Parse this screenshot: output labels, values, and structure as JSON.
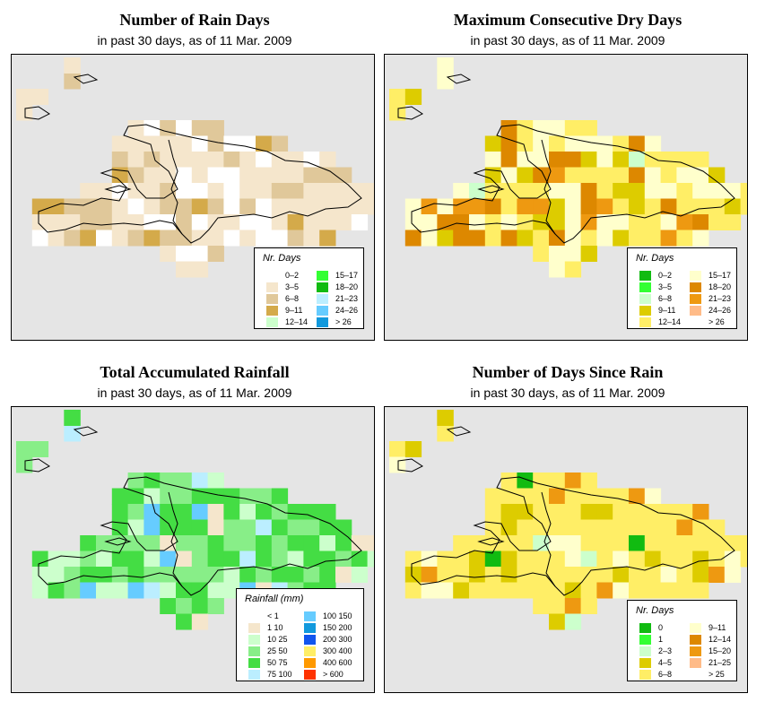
{
  "panels": [
    {
      "id": "rain-days",
      "title": "Number of Rain Days",
      "subtitle": "in past 30 days, as of  11 Mar. 2009",
      "legend": {
        "title": "Nr. Days",
        "items": [
          {
            "label": "0–2",
            "color": "#ffffff"
          },
          {
            "label": "3–5",
            "color": "#f5e6cc"
          },
          {
            "label": "6–8",
            "color": "#e0c89a"
          },
          {
            "label": "9–11",
            "color": "#d4aa4a"
          },
          {
            "label": "12–14",
            "color": "#ccffcc"
          },
          {
            "label": "15–17",
            "color": "#33ff33"
          },
          {
            "label": "18–20",
            "color": "#11bb11"
          },
          {
            "label": "21–23",
            "color": "#bbeeff"
          },
          {
            "label": "24–26",
            "color": "#66ccff"
          },
          {
            "label": "> 26",
            "color": "#1199dd"
          }
        ]
      }
    },
    {
      "id": "dry-days",
      "title": "Maximum Consecutive Dry Days",
      "subtitle": "in past 30 days, as of  11 Mar. 2009",
      "legend": {
        "title": "Nr. Days",
        "items": [
          {
            "label": "0–2",
            "color": "#11bb11"
          },
          {
            "label": "3–5",
            "color": "#33ff33"
          },
          {
            "label": "6–8",
            "color": "#ccffcc"
          },
          {
            "label": "9–11",
            "color": "#ddcc00"
          },
          {
            "label": "12–14",
            "color": "#ffee66"
          },
          {
            "label": "15–17",
            "color": "#ffffcc"
          },
          {
            "label": "18–20",
            "color": "#dd8800"
          },
          {
            "label": "21–23",
            "color": "#ee9911"
          },
          {
            "label": "24–26",
            "color": "#ffbb88"
          },
          {
            "label": "> 26",
            "color": "#ffffff"
          }
        ]
      }
    },
    {
      "id": "total-rainfall",
      "title": "Total Accumulated Rainfall",
      "subtitle": "in past 30 days, as of  11 Mar. 2009",
      "legend": {
        "title": "Rainfall (mm)",
        "items": [
          {
            "label": "< 1",
            "color": "#ffffff"
          },
          {
            "label": "1      10",
            "color": "#f5e6cc"
          },
          {
            "label": "10      25",
            "color": "#ccffcc"
          },
          {
            "label": "25      50",
            "color": "#88ee88"
          },
          {
            "label": "50      75",
            "color": "#44dd44"
          },
          {
            "label": "75    100",
            "color": "#bbeeff"
          },
          {
            "label": "100    150",
            "color": "#66ccff"
          },
          {
            "label": "150    200",
            "color": "#1199dd"
          },
          {
            "label": "200    300",
            "color": "#1155ee"
          },
          {
            "label": "300    400",
            "color": "#ffee66"
          },
          {
            "label": "400    600",
            "color": "#ff9900"
          },
          {
            "label": "> 600",
            "color": "#ff3300"
          }
        ]
      }
    },
    {
      "id": "days-since-rain",
      "title": "Number of Days Since Rain",
      "subtitle": "in past 30 days, as of  11 Mar. 2009",
      "legend": {
        "title": "Nr. Days",
        "items": [
          {
            "label": "0",
            "color": "#11bb11"
          },
          {
            "label": "1",
            "color": "#33ff33"
          },
          {
            "label": "2–3",
            "color": "#ccffcc"
          },
          {
            "label": "4–5",
            "color": "#ddcc00"
          },
          {
            "label": "6–8",
            "color": "#ffee66"
          },
          {
            "label": "9–11",
            "color": "#ffffcc"
          },
          {
            "label": "12–14",
            "color": "#dd8800"
          },
          {
            "label": "15–20",
            "color": "#ee9911"
          },
          {
            "label": "21–25",
            "color": "#ffbb88"
          },
          {
            "label": "> 25",
            "color": "#ffffff"
          }
        ]
      }
    }
  ]
}
